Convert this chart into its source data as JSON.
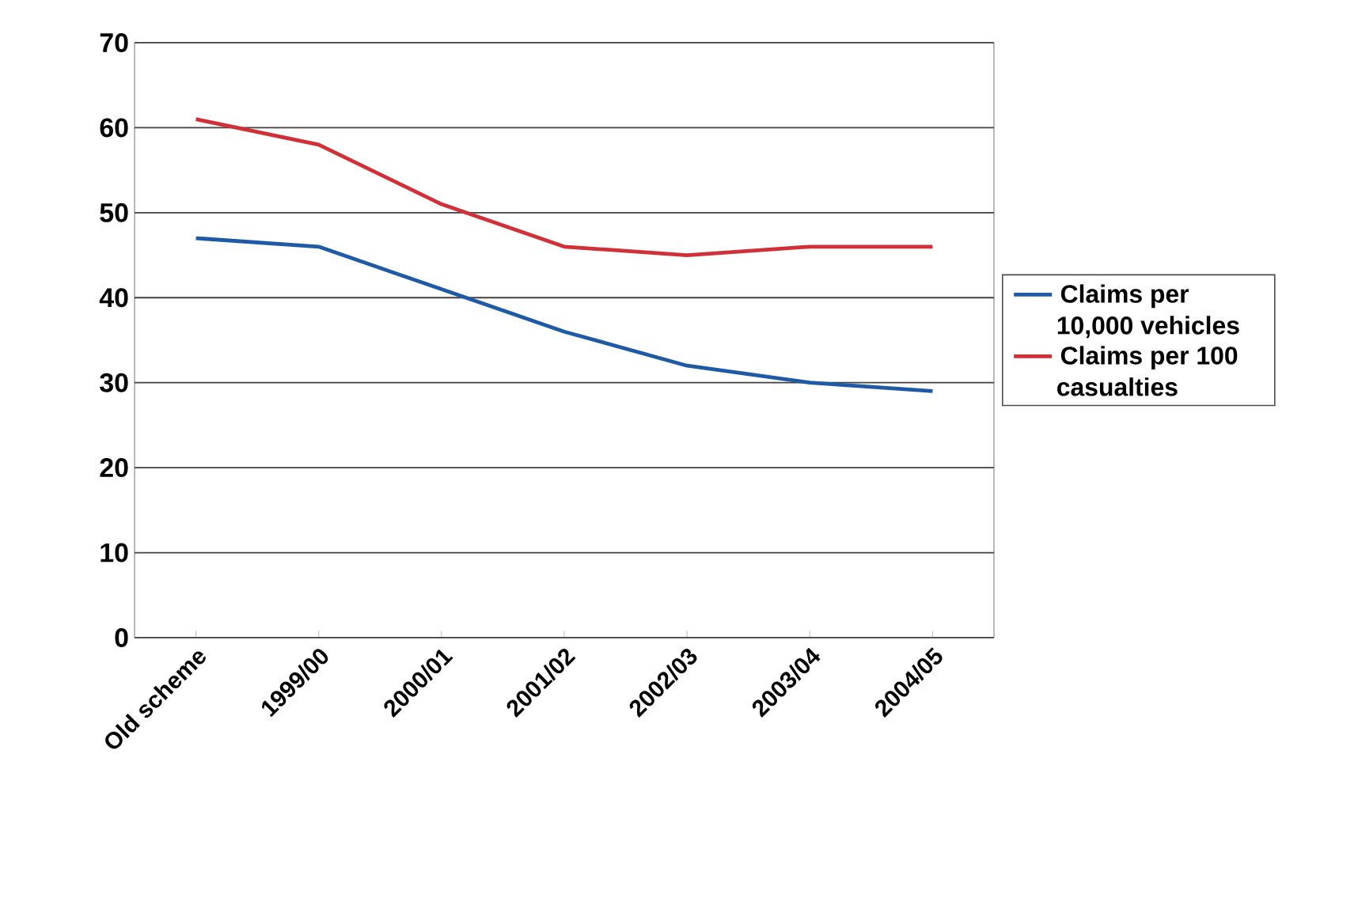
{
  "chart_data": {
    "type": "line",
    "categories": [
      "Old scheme",
      "1999/00",
      "2000/01",
      "2001/02",
      "2002/03",
      "2003/04",
      "2004/05"
    ],
    "series": [
      {
        "name": "Claims per 10,000 vehicles",
        "color": "#1f5aa6",
        "values": [
          47,
          46,
          41,
          36,
          32,
          30,
          29
        ]
      },
      {
        "name": "Claims per 100 casualties",
        "color": "#d03038",
        "values": [
          61,
          58,
          51,
          46,
          45,
          46,
          46
        ]
      }
    ],
    "ylim": [
      0,
      70
    ],
    "yticks": [
      0,
      10,
      20,
      30,
      40,
      50,
      60,
      70
    ],
    "grid": "y",
    "legend": "right",
    "marker": "none",
    "line_style": "solid"
  }
}
